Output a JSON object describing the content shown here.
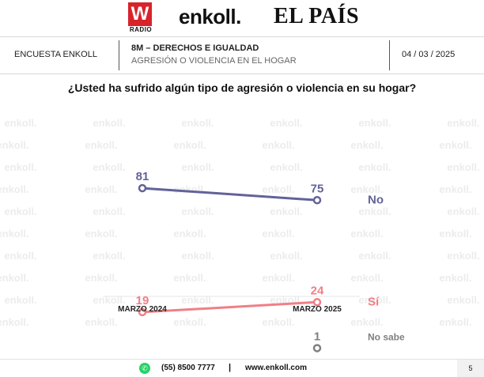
{
  "brand": {
    "radio_logo": "W",
    "radio_label": "RADIO",
    "enkoll_logo": "enkoll.",
    "pais_logo": "EL PAÍS",
    "watermark": "enkoll."
  },
  "header": {
    "survey_label": "ENCUESTA ENKOLL",
    "topic_title": "8M – DERECHOS E IGUALDAD",
    "topic_subtitle": "AGRESIÓN O VIOLENCIA EN EL HOGAR",
    "date": "04 / 03 / 2025"
  },
  "question": "¿Usted ha sufrido algún tipo de agresión o violencia en su hogar?",
  "colors": {
    "no": "#62629a",
    "si": "#f07f86",
    "no_sabe": "#808080",
    "watermark": "#ececec",
    "whatsapp": "#25d366",
    "w_brand": "#d8232a"
  },
  "chart_data": {
    "type": "line",
    "categories": [
      "MARZO 2024",
      "MARZO 2025"
    ],
    "series": [
      {
        "name": "No",
        "values": [
          81,
          75
        ]
      },
      {
        "name": "Sí",
        "values": [
          19,
          24
        ]
      },
      {
        "name": "No sabe",
        "values": [
          null,
          1
        ]
      }
    ],
    "ylim": [
      0,
      100
    ],
    "grid": false,
    "legend": "right"
  },
  "footer": {
    "whatsapp_icon": "whatsapp-icon",
    "phone": "(55) 8500 7777",
    "separator": "|",
    "website": "www.enkoll.com",
    "page_number": "5"
  }
}
